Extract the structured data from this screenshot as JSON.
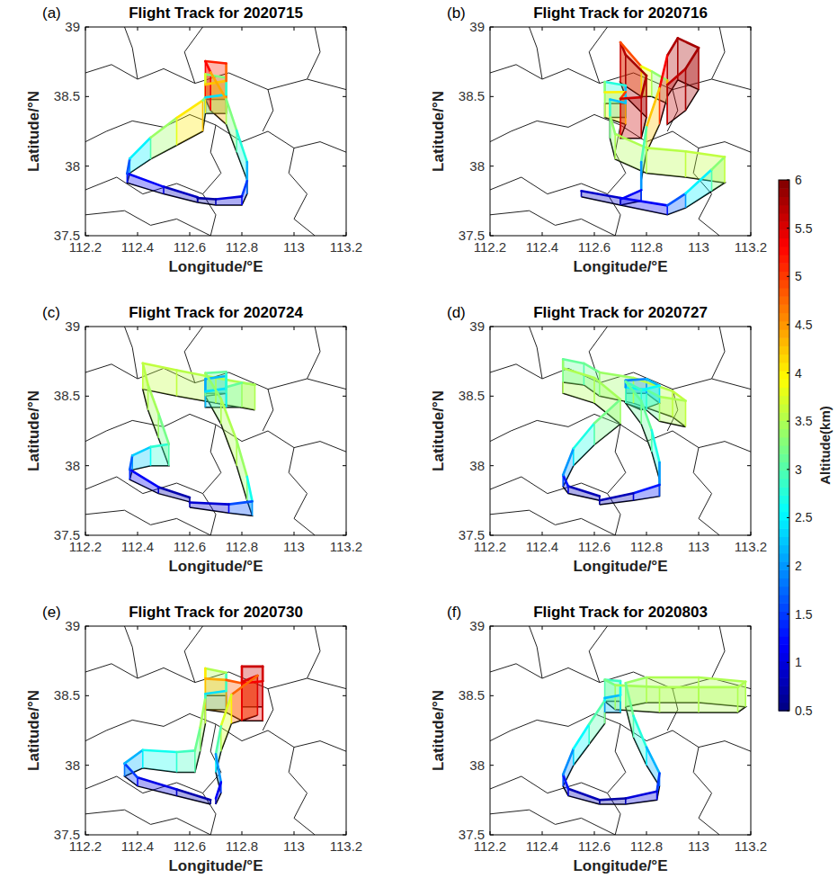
{
  "chart_data": [
    {
      "type": "line",
      "title": "Flight Track for 2020715",
      "annotations": [
        "(a)"
      ],
      "x_label": "Longitude/°E",
      "y_label": "Latitude/°N",
      "xlim": [
        112.2,
        113.2
      ],
      "xticks": [
        112.2,
        112.4,
        112.6,
        112.8,
        113,
        113.2
      ],
      "ylim": [
        37.5,
        39
      ],
      "yticks": [
        37.5,
        38,
        38.5,
        39
      ],
      "grid": false,
      "series": [
        {
          "x": [
            112.63,
            112.5,
            112.36,
            112.37,
            112.45,
            112.55,
            112.65,
            112.66,
            112.74,
            112.74,
            112.66,
            112.66,
            112.74,
            112.74,
            112.66,
            112.68,
            112.74,
            112.78,
            112.82,
            112.82,
            112.8,
            112.7,
            112.63
          ],
          "y": [
            37.74,
            37.8,
            37.88,
            37.95,
            38.05,
            38.15,
            38.25,
            38.38,
            38.38,
            38.48,
            38.48,
            38.38,
            38.38,
            38.48,
            38.48,
            38.4,
            38.3,
            38.1,
            37.9,
            37.8,
            37.72,
            37.72,
            37.74
          ],
          "altitude": [
            0.7,
            1.0,
            1.3,
            2.0,
            3.0,
            3.8,
            4.3,
            2.2,
            2.6,
            3.0,
            3.5,
            4.0,
            4.5,
            5.0,
            5.3,
            5.3,
            3.5,
            3.0,
            2.5,
            1.8,
            1.2,
            0.8,
            0.6
          ]
        }
      ]
    },
    {
      "type": "line",
      "title": "Flight Track for 2020716",
      "annotations": [
        "(b)"
      ],
      "x_label": "Longitude/°E",
      "y_label": "Latitude/°N",
      "xlim": [
        112.2,
        113.2
      ],
      "xticks": [
        112.2,
        112.4,
        112.6,
        112.8,
        113,
        113.2
      ],
      "ylim": [
        37.5,
        39
      ],
      "yticks": [
        37.5,
        38,
        38.5,
        39
      ],
      "grid": false,
      "series": [
        {
          "x": [
            112.55,
            112.7,
            112.88,
            112.95,
            113.05,
            113.1,
            112.95,
            112.8,
            112.68,
            112.66,
            112.66,
            112.72,
            112.72,
            112.64,
            112.64,
            112.72,
            112.7,
            112.78,
            112.8,
            112.72,
            112.7,
            112.78,
            112.82,
            112.88,
            112.88,
            112.95,
            113.0,
            112.92,
            112.88,
            112.85,
            112.8,
            112.78,
            112.78,
            112.7
          ],
          "y": [
            37.78,
            37.72,
            37.65,
            37.7,
            37.82,
            37.88,
            37.92,
            37.95,
            38.05,
            38.2,
            38.35,
            38.35,
            38.45,
            38.45,
            38.35,
            38.3,
            38.2,
            38.2,
            38.35,
            38.5,
            38.6,
            38.5,
            38.5,
            38.45,
            38.3,
            38.4,
            38.55,
            38.62,
            38.5,
            38.3,
            38.1,
            37.9,
            37.75,
            37.72
          ],
          "altitude": [
            0.8,
            1.0,
            1.3,
            2.0,
            3.0,
            3.6,
            3.6,
            3.5,
            3.5,
            3.2,
            2.5,
            2.0,
            2.5,
            3.0,
            3.5,
            4.5,
            5.5,
            5.7,
            5.8,
            5.8,
            5.6,
            4.2,
            3.5,
            3.2,
            5.5,
            5.8,
            5.8,
            5.8,
            5.7,
            5.0,
            3.5,
            2.5,
            1.5,
            0.8
          ]
        }
      ]
    },
    {
      "type": "line",
      "title": "Flight Track for 2020724",
      "annotations": [
        "(c)"
      ],
      "x_label": "Longitude/°E",
      "y_label": "Latitude/°N",
      "xlim": [
        112.2,
        113.2
      ],
      "xticks": [
        112.2,
        112.4,
        112.6,
        112.8,
        113,
        113.2
      ],
      "ylim": [
        37.5,
        39
      ],
      "yticks": [
        37.5,
        38,
        38.5,
        39
      ],
      "grid": false,
      "series": [
        {
          "x": [
            112.6,
            112.48,
            112.37,
            112.38,
            112.45,
            112.52,
            112.48,
            112.44,
            112.42,
            112.55,
            112.7,
            112.85,
            112.8,
            112.74,
            112.74,
            112.66,
            112.66,
            112.74,
            112.74,
            112.66,
            112.72,
            112.78,
            112.82,
            112.84,
            112.75,
            112.6
          ],
          "y": [
            37.74,
            37.8,
            37.9,
            37.97,
            38.0,
            38.0,
            38.2,
            38.4,
            38.55,
            38.5,
            38.45,
            38.4,
            38.42,
            38.42,
            38.52,
            38.52,
            38.42,
            38.42,
            38.52,
            38.5,
            38.3,
            38.0,
            37.75,
            37.64,
            37.66,
            37.7
          ],
          "altitude": [
            0.6,
            0.9,
            1.4,
            2.0,
            2.6,
            3.0,
            3.4,
            3.5,
            3.6,
            3.6,
            3.5,
            3.5,
            3.4,
            2.8,
            2.4,
            2.0,
            2.2,
            2.6,
            3.0,
            3.2,
            3.5,
            3.5,
            3.3,
            2.0,
            1.2,
            0.7
          ]
        }
      ]
    },
    {
      "type": "line",
      "title": "Flight Track for 2020727",
      "annotations": [
        "(d)"
      ],
      "x_label": "Longitude/°E",
      "y_label": "Latitude/°N",
      "xlim": [
        112.2,
        113.2
      ],
      "xticks": [
        112.2,
        112.4,
        112.6,
        112.8,
        113,
        113.2
      ],
      "ylim": [
        37.5,
        39
      ],
      "yticks": [
        37.5,
        38,
        38.5,
        39
      ],
      "grid": false,
      "series": [
        {
          "x": [
            112.62,
            112.5,
            112.48,
            112.52,
            112.6,
            112.7,
            112.6,
            112.48,
            112.48,
            112.56,
            112.62,
            112.75,
            112.9,
            112.95,
            112.85,
            112.8,
            112.72,
            112.72,
            112.8,
            112.85,
            112.78,
            112.72,
            112.78,
            112.82,
            112.85,
            112.85,
            112.75,
            112.62
          ],
          "y": [
            37.75,
            37.8,
            37.85,
            38.0,
            38.15,
            38.3,
            38.45,
            38.52,
            38.6,
            38.58,
            38.5,
            38.45,
            38.35,
            38.28,
            38.32,
            38.4,
            38.45,
            38.52,
            38.52,
            38.45,
            38.4,
            38.45,
            38.3,
            38.1,
            37.9,
            37.78,
            37.75,
            37.72
          ],
          "altitude": [
            0.6,
            1.0,
            1.6,
            2.4,
            3.0,
            3.4,
            3.5,
            3.5,
            3.2,
            3.0,
            3.3,
            3.5,
            3.6,
            3.6,
            3.4,
            2.8,
            2.2,
            1.8,
            2.0,
            2.4,
            2.8,
            3.0,
            3.2,
            3.0,
            2.4,
            1.6,
            1.0,
            0.6
          ]
        }
      ]
    },
    {
      "type": "line",
      "title": "Flight Track for 2020730",
      "annotations": [
        "(e)"
      ],
      "x_label": "Longitude/°E",
      "y_label": "Latitude/°N",
      "xlim": [
        112.2,
        113.2
      ],
      "xticks": [
        112.2,
        112.4,
        112.6,
        112.8,
        113,
        113.2
      ],
      "ylim": [
        37.5,
        39
      ],
      "yticks": [
        37.5,
        38,
        38.5,
        39
      ],
      "grid": false,
      "series": [
        {
          "x": [
            112.68,
            112.55,
            112.4,
            112.35,
            112.42,
            112.55,
            112.62,
            112.64,
            112.66,
            112.66,
            112.74,
            112.74,
            112.66,
            112.66,
            112.74,
            112.8,
            112.88,
            112.88,
            112.8,
            112.8,
            112.86,
            112.76,
            112.72,
            112.7,
            112.72,
            112.7
          ],
          "y": [
            37.72,
            37.78,
            37.85,
            37.92,
            37.98,
            37.95,
            37.95,
            38.1,
            38.3,
            38.4,
            38.4,
            38.5,
            38.5,
            38.4,
            38.38,
            38.32,
            38.32,
            38.42,
            38.42,
            38.32,
            38.36,
            38.3,
            38.1,
            37.95,
            37.8,
            37.72
          ],
          "altitude": [
            0.6,
            0.9,
            1.2,
            1.8,
            2.5,
            2.8,
            3.0,
            3.3,
            3.6,
            2.2,
            2.6,
            3.2,
            3.8,
            4.3,
            4.5,
            5.2,
            5.5,
            5.6,
            5.6,
            5.4,
            5.5,
            4.0,
            3.5,
            2.5,
            1.5,
            0.8
          ]
        }
      ]
    },
    {
      "type": "line",
      "title": "Flight Track for 2020803",
      "annotations": [
        "(f)"
      ],
      "x_label": "Longitude/°E",
      "y_label": "Latitude/°N",
      "xlim": [
        112.2,
        113.2
      ],
      "xticks": [
        112.2,
        112.4,
        112.6,
        112.8,
        113,
        113.2
      ],
      "ylim": [
        37.5,
        39
      ],
      "yticks": [
        37.5,
        38,
        38.5,
        39
      ],
      "grid": false,
      "series": [
        {
          "x": [
            112.62,
            112.5,
            112.48,
            112.52,
            112.58,
            112.64,
            112.64,
            112.7,
            112.7,
            112.64,
            112.68,
            112.85,
            113.0,
            113.15,
            113.18,
            113.0,
            112.8,
            112.72,
            112.75,
            112.8,
            112.85,
            112.84,
            112.72,
            112.62
          ],
          "y": [
            37.72,
            37.78,
            37.85,
            38.0,
            38.15,
            38.3,
            38.38,
            38.38,
            38.46,
            38.46,
            38.4,
            38.38,
            38.38,
            38.38,
            38.42,
            38.45,
            38.45,
            38.42,
            38.2,
            38.0,
            37.85,
            37.75,
            37.72,
            37.72
          ],
          "altitude": [
            0.6,
            1.0,
            1.6,
            2.3,
            2.8,
            3.2,
            2.0,
            2.4,
            2.8,
            3.0,
            3.4,
            3.5,
            3.5,
            3.5,
            3.5,
            3.5,
            3.5,
            3.3,
            3.0,
            2.5,
            1.8,
            1.2,
            0.8,
            0.6
          ]
        }
      ]
    }
  ],
  "colorbar": {
    "label": "Altitude(km)",
    "range": [
      0.5,
      6
    ],
    "ticks": [
      0.5,
      1,
      1.5,
      2,
      2.5,
      3,
      3.5,
      4,
      4.5,
      5,
      5.5,
      6
    ]
  }
}
